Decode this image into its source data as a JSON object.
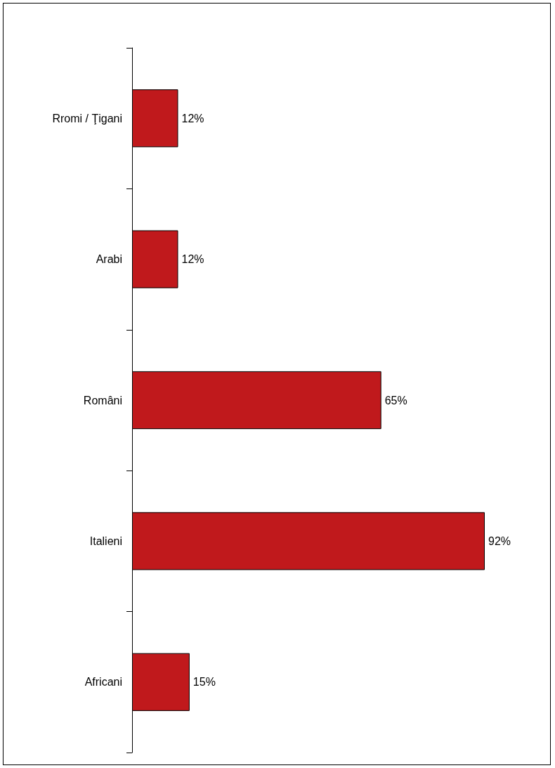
{
  "chart_data": {
    "type": "bar",
    "orientation": "horizontal",
    "categories": [
      "Rromi / Ţigani",
      "Arabi",
      "Români",
      "Italieni",
      "Africani"
    ],
    "values": [
      12,
      12,
      65,
      92,
      15
    ],
    "value_labels": [
      "12%",
      "12%",
      "65%",
      "92%",
      "15%"
    ],
    "color": "#c0191c",
    "tick_labels": "y"
  }
}
